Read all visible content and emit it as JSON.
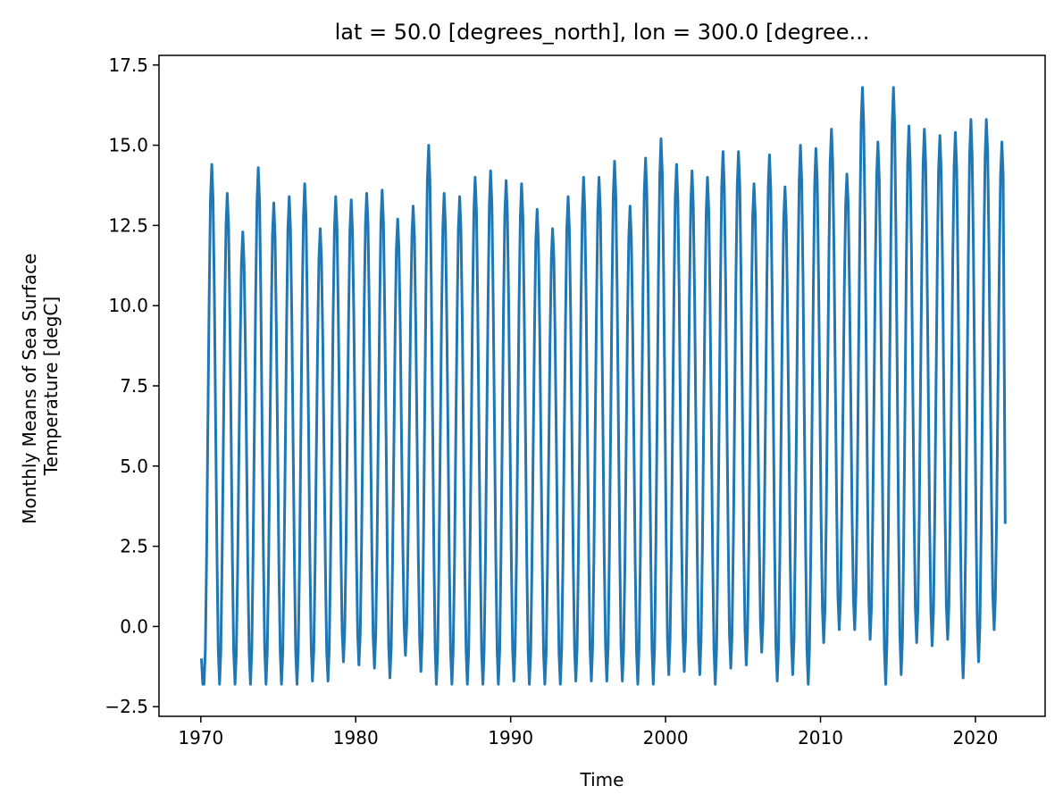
{
  "chart_data": {
    "type": "line",
    "title": "lat = 50.0 [degrees_north], lon = 300.0 [degree...",
    "xlabel": "Time",
    "ylabel_lines": [
      "Monthly Means of Sea Surface",
      "Temperature [degC]"
    ],
    "xlim": [
      1967.3,
      2024.5
    ],
    "ylim": [
      -2.8,
      17.8
    ],
    "x_ticks": [
      1970,
      1980,
      1990,
      2000,
      2010,
      2020
    ],
    "x_tick_labels": [
      "1970",
      "1980",
      "1990",
      "2000",
      "2010",
      "2020"
    ],
    "y_ticks": [
      -2.5,
      0.0,
      2.5,
      5.0,
      7.5,
      10.0,
      12.5,
      15.0,
      17.5
    ],
    "y_tick_labels": [
      "−2.5",
      "0.0",
      "2.5",
      "5.0",
      "7.5",
      "10.0",
      "12.5",
      "15.0",
      "17.5"
    ],
    "grid": false,
    "line_color": "#1f77b4",
    "series": [
      {
        "x_start_year": 1970.04,
        "x_step_months": 1,
        "annual_peak_month": 8,
        "annual_min_month": 2,
        "last_value": 3.2,
        "peaks": [
          14.4,
          13.5,
          12.3,
          14.3,
          13.2,
          13.4,
          13.8,
          12.4,
          13.4,
          13.3,
          13.5,
          13.6,
          12.7,
          13.1,
          15.0,
          13.5,
          13.4,
          14.0,
          14.2,
          13.9,
          13.8,
          13.0,
          12.4,
          13.4,
          14.0,
          14.0,
          14.5,
          13.1,
          14.6,
          15.2,
          14.4,
          14.2,
          14.0,
          14.8,
          14.8,
          13.8,
          14.7,
          13.7,
          15.0,
          14.9,
          15.5,
          14.1,
          16.8,
          15.1,
          16.8,
          15.6,
          15.5,
          15.3,
          15.4,
          15.8,
          15.8,
          15.1
        ],
        "minima": [
          -1.8,
          -1.8,
          -1.8,
          -1.8,
          -1.8,
          -1.8,
          -1.8,
          -1.7,
          -1.7,
          -1.1,
          -1.2,
          -1.3,
          -1.6,
          -0.9,
          -1.4,
          -1.8,
          -1.8,
          -1.8,
          -1.8,
          -1.8,
          -1.7,
          -1.8,
          -1.8,
          -1.8,
          -1.7,
          -1.7,
          -1.7,
          -1.7,
          -1.8,
          -1.8,
          -1.5,
          -1.4,
          -1.5,
          -1.8,
          -1.3,
          -1.2,
          -0.8,
          -1.7,
          -1.5,
          -1.8,
          -0.5,
          -0.1,
          -0.1,
          -0.4,
          -1.8,
          -1.5,
          -0.5,
          -0.6,
          -0.4,
          -1.6,
          -1.1,
          -0.1
        ]
      }
    ]
  }
}
